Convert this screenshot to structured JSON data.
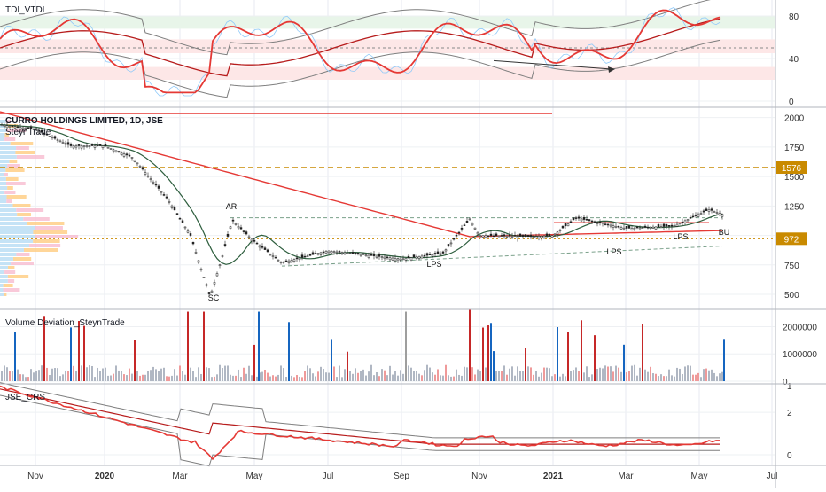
{
  "pane1": {
    "title": "TDI_VTDI",
    "ticks": [
      0,
      40,
      80
    ],
    "ylim": [
      -5,
      95
    ]
  },
  "pane2": {
    "title": "CURRO HOLDINGS LIMITED, 1D, JSE",
    "subtitle": "SteynTrade",
    "ticks": [
      500,
      750,
      1000,
      1250,
      1500,
      1750,
      2000
    ],
    "ylim": [
      380,
      2080
    ],
    "badges": [
      {
        "value": "1576",
        "color": "#c98a00"
      },
      {
        "value": "972",
        "color": "#c98a00"
      }
    ],
    "annotations": [
      "AR",
      "SC",
      "LPS",
      "LPS",
      "LPS",
      "BU"
    ]
  },
  "pane3": {
    "title": "Volume Deviation_SteynTrade",
    "ticks": [
      "0",
      "1000000",
      "2000000"
    ],
    "ymax": 2600000
  },
  "pane4": {
    "title": "JSE_CRS",
    "ticks": [
      0,
      2
    ],
    "ylim": [
      -0.5,
      3.3
    ],
    "top_tick": "1"
  },
  "xaxis": {
    "labels": [
      "Nov",
      "2020",
      "Mar",
      "May",
      "Jul",
      "Sep",
      "Nov",
      "2021",
      "Mar",
      "May",
      "Jul"
    ]
  },
  "colors": {
    "red": "#e53935",
    "darkred": "#b71c1c",
    "green": "#388e3c",
    "darkgreen": "#2e5e3e",
    "grey": "#7f7f7f",
    "blue": "#2962ff",
    "gold": "#c98a00",
    "bull": "#26a69a",
    "bear": "#ef5350"
  },
  "chart_data": {
    "type": "line",
    "title": "CURRO HOLDINGS LIMITED, 1D, JSE",
    "x": [
      "Nov",
      "2020",
      "Mar",
      "May",
      "Jul",
      "Sep",
      "Nov",
      "2021",
      "Mar",
      "May"
    ],
    "series": [
      {
        "name": "CURRO HOLDINGS LIMITED",
        "values": [
          1920,
          1760,
          1400,
          1000,
          870,
          800,
          1010,
          980,
          1050,
          1180
        ]
      }
    ],
    "ylim": [
      380,
      2080
    ],
    "levels": [
      1576,
      972
    ],
    "annotations": [
      "AR",
      "SC",
      "LPS",
      "LPS",
      "LPS",
      "BU"
    ]
  }
}
